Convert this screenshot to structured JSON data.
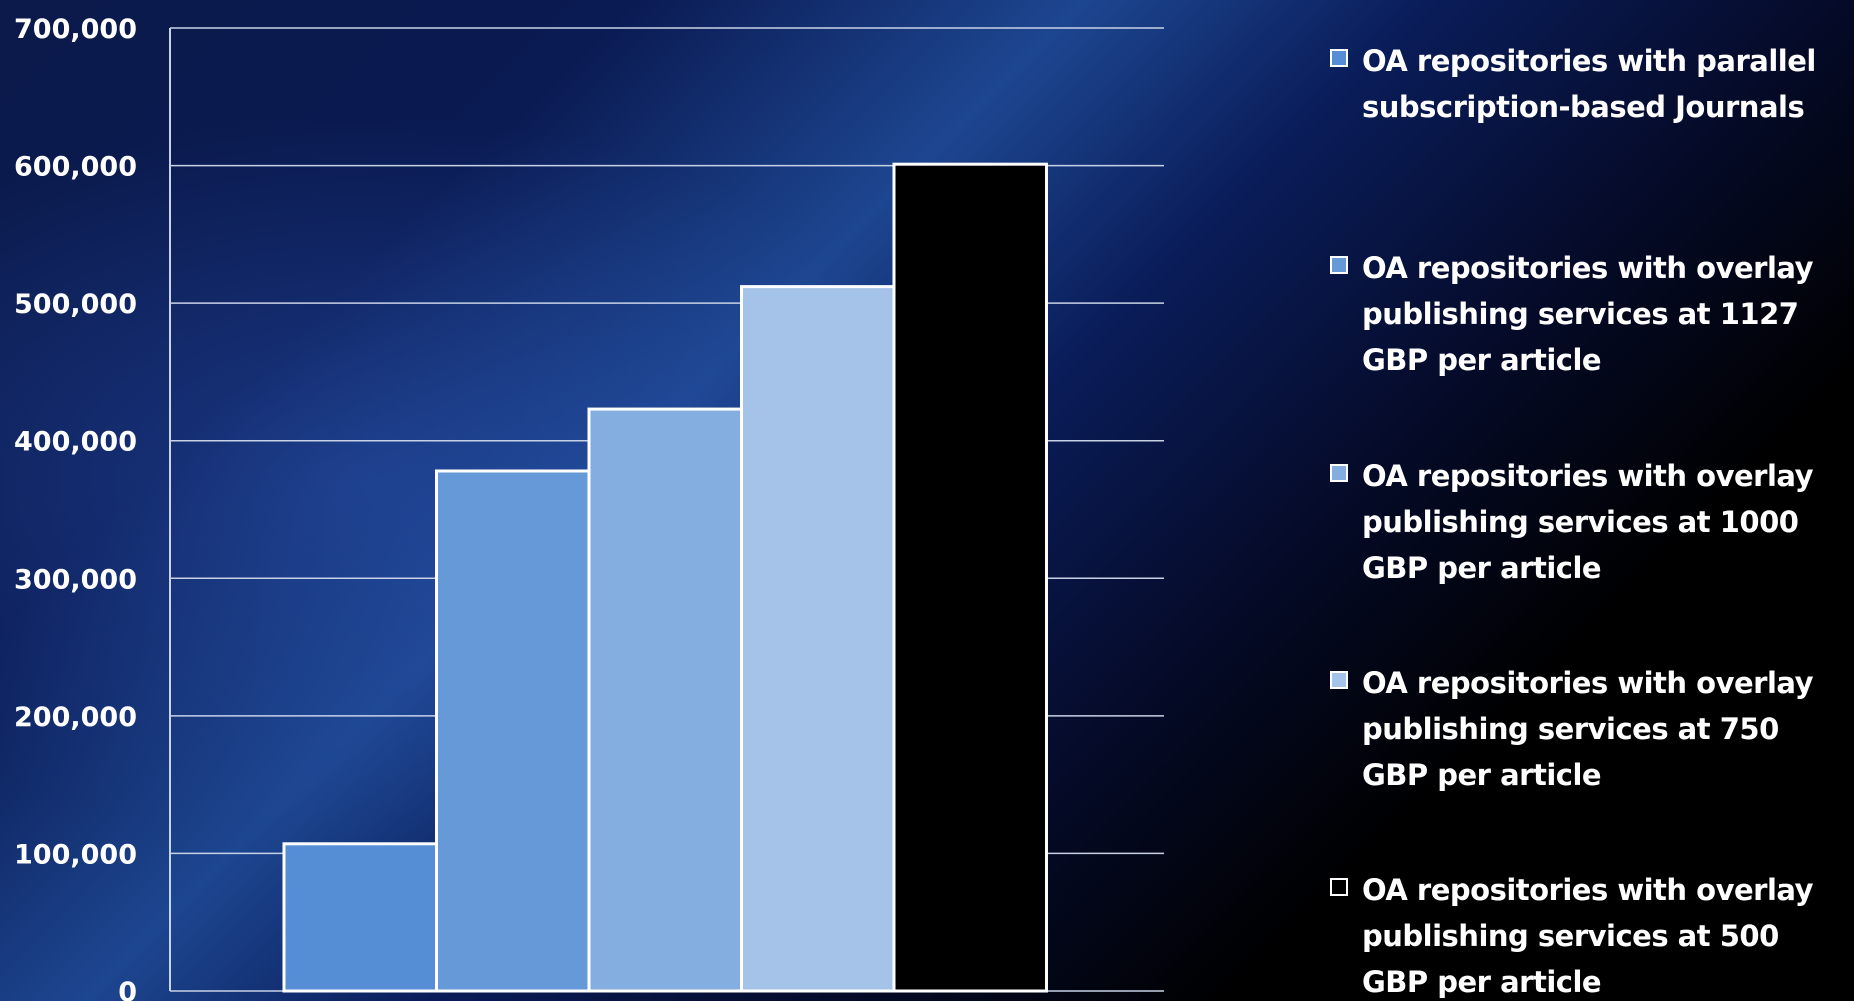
{
  "chart_data": {
    "type": "bar",
    "title": "",
    "xlabel": "",
    "ylabel": "",
    "ylim": [
      0,
      700000
    ],
    "yticks": [
      0,
      100000,
      200000,
      300000,
      400000,
      500000,
      600000,
      700000
    ],
    "ytick_labels": [
      "0",
      "100,000",
      "200,000",
      "300,000",
      "400,000",
      "500,000",
      "600,000",
      "700,000"
    ],
    "grid": true,
    "legend_placement": "right",
    "series": [
      {
        "name": "OA repositories with parallel subscription-based Journals",
        "value": 107000,
        "color": "#558ed5"
      },
      {
        "name": "OA repositories with overlay publishing services at 1127 GBP per article",
        "value": 378000,
        "color": "#6599d8"
      },
      {
        "name": "OA repositories with overlay publishing services at 1000 GBP per article",
        "value": 423000,
        "color": "#85aee0"
      },
      {
        "name": "OA repositories with overlay publishing services at 750 GBP per article",
        "value": 512000,
        "color": "#a5c2e8"
      },
      {
        "name": "OA repositories with overlay publishing services at 500 GBP per article",
        "value": 601000,
        "color": "#000000"
      }
    ]
  }
}
